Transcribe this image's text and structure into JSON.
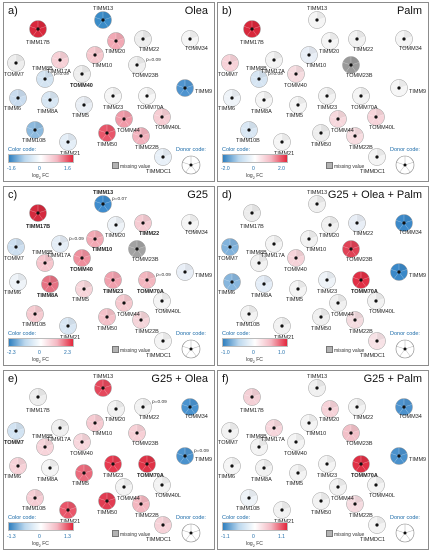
{
  "legend": {
    "color_code": "Color code:",
    "axis": "log",
    "axis_sub": "2",
    "axis_tail": " FC",
    "missing": "missing value",
    "donor_code": "Donor code:"
  },
  "proteins": [
    "TIMM17B",
    "TIMM13",
    "TIMM20",
    "TIMM22",
    "TOMM34",
    "TOMM7",
    "TIMM17A",
    "TIMM10",
    "TIMM8B",
    "TOMM40",
    "TOMM23B",
    "TIMM6",
    "TIMM8A",
    "TIMM23",
    "TOMM70A",
    "TIMM9",
    "TIMM5",
    "TOMM44",
    "TIMM10B",
    "TOMM40L",
    "TIMM21",
    "TIMM50",
    "TIMM22B",
    "TIMMDC1"
  ],
  "panels": [
    {
      "id": "a",
      "label": "a)",
      "title": "Olea",
      "min": "-1.6",
      "max": "1.6",
      "bold": [
        "TOMM17B",
        "TOMM40"
      ],
      "annotations": [
        {
          "t": "p=0.09",
          "near": "TOMM23B"
        },
        {
          "t": "p=0.09",
          "near": "TIMM8B"
        }
      ],
      "colors": {
        "TIMM17B": "#d8283c",
        "TIMM13": "#3a8cc8",
        "TIMM20": "#f1a8b4",
        "TIMM22": "#eeeeee",
        "TOMM34": "#f5f5f5",
        "TOMM7": "#eeeeee",
        "TIMM17A": "#f7d0d6",
        "TIMM10": "#f6c8ce",
        "TIMM8B": "#d4e4f2",
        "TOMM40": "#eeeeee",
        "TOMM23B": "#f0f0f0",
        "TIMM6": "#c9dcef",
        "TIMM8A": "#d7e6f3",
        "TIMM23": "#f5f5f5",
        "TOMM70A": "#f7f7f7",
        "TIMM9": "#4f94cf",
        "TIMM5": "#e9eef4",
        "TOMM44": "#f09aa8",
        "TIMM10B": "#8dbade",
        "TOMM40L": "#f6cdd3",
        "TIMM21": "#e4eef7",
        "TIMM50": "#e8566a",
        "TIMM22B": "#f2b2bd",
        "TIMMDC1": "#e8f0f8"
      }
    },
    {
      "id": "b",
      "label": "b)",
      "title": "Palm",
      "min": "-2.0",
      "max": "2.0",
      "bold": [],
      "annotations": [
        {
          "t": "p=0.09",
          "near": "TIMM8B"
        }
      ],
      "colors": {
        "TIMM17B": "#d8283c",
        "TIMM13": "#f5f5f5",
        "TIMM20": "#f5f5f5",
        "TIMM22": "#f2f2f2",
        "TOMM34": "#f5f5f5",
        "TOMM7": "#f7d2d8",
        "TIMM17A": "#f3f3f3",
        "TIMM10": "#e8eef6",
        "TIMM8B": "#d6e5f3",
        "TOMM40": "#f6dce0",
        "TOMM23B": "#9a9a9a",
        "TIMM6": "#eef3f8",
        "TIMM8A": "#f5f5f5",
        "TIMM23": "#f3f3f3",
        "TOMM70A": "#f4f4f4",
        "TIMM9": "#f6f6f6",
        "TIMM5": "#f5f5f5",
        "TOMM44": "#f7d8dd",
        "TIMM10B": "#d9e7f4",
        "TOMM40L": "#f7d4da",
        "TIMM21": "#f5f5f5",
        "TIMM50": "#eeeeee",
        "TIMM22B": "#f8dde1",
        "TIMMDC1": "#f4f4f4"
      }
    },
    {
      "id": "c",
      "label": "c)",
      "title": "G25",
      "min": "-2.3",
      "max": "2.3",
      "bold": [
        "TIMM17B",
        "TIMM13",
        "TIMM10",
        "TOMM40",
        "TIMM8A",
        "TIMM23",
        "TOMM70A",
        "TIMM22"
      ],
      "annotations": [
        {
          "t": "p=0.07",
          "near": "TIMM13"
        },
        {
          "t": "p=0.09",
          "near": "TIMM17A"
        },
        {
          "t": "p=0.09",
          "near": "TOMM70A"
        }
      ],
      "colors": {
        "TIMM17B": "#d42a3e",
        "TIMM13": "#3f8ccd",
        "TIMM20": "#eef3f8",
        "TIMM22": "#f5cbd2",
        "TOMM34": "#f5f5f5",
        "TOMM7": "#cddff0",
        "TIMM17A": "#e4edf6",
        "TIMM10": "#f2a9b4",
        "TIMM8B": "#f6c6cd",
        "TOMM40": "#ef8f9d",
        "TOMM23B": "#a2a2a2",
        "TIMM6": "#eef3f8",
        "TIMM8A": "#e57283",
        "TIMM23": "#f0a0ad",
        "TOMM70A": "#f3b6bf",
        "TIMM9": "#e9eff7",
        "TIMM5": "#f7d5da",
        "TOMM44": "#f5c9cf",
        "TIMM10B": "#f6cbd1",
        "TOMM40L": "#f4f4f4",
        "TIMM21": "#d8e6f3",
        "TIMM50": "#f4c0c8",
        "TIMM22B": "#f5d4d9",
        "TIMMDC1": "#f4f4f4"
      }
    },
    {
      "id": "d",
      "label": "d)",
      "title": "G25 + Olea + Palm",
      "min": "-1.0",
      "max": "1.0",
      "bold": [
        "TOMM70A"
      ],
      "annotations": [],
      "colors": {
        "TIMM17B": "#ececec",
        "TIMM13": "#f0f0f0",
        "TIMM20": "#f0f0f0",
        "TIMM22": "#e8eef6",
        "TOMM34": "#3c89c9",
        "TOMM7": "#82b3dc",
        "TIMM17A": "#f4f4f4",
        "TIMM10": "#f2f2f2",
        "TIMM8B": "#f2f2f2",
        "TOMM40": "#f6d3d9",
        "TOMM23B": "#e04256",
        "TIMM6": "#87b6dd",
        "TIMM8A": "#e4edf7",
        "TIMM23": "#eef3f8",
        "TOMM70A": "#e02f45",
        "TIMM9": "#3a88c8",
        "TIMM5": "#f4f4f4",
        "TOMM44": "#f0f0f0",
        "TIMM10B": "#f2f2f2",
        "TOMM40L": "#f2f2f2",
        "TIMM21": "#f2f2f2",
        "TIMM50": "#f0f0f0",
        "TIMM22B": "#f4dce0",
        "TIMMDC1": "#f7e2e6"
      }
    },
    {
      "id": "e",
      "label": "e)",
      "title": "G25 + Olea",
      "min": "-1.3",
      "max": "1.3",
      "bold": [
        "TOMM7",
        "TOMM70A"
      ],
      "annotations": [
        {
          "t": "p=0.09",
          "near": "TIMM22"
        },
        {
          "t": "p=0.09",
          "near": "TIMM9"
        }
      ],
      "colors": {
        "TIMM17B": "#eeeeee",
        "TIMM13": "#e4485c",
        "TIMM20": "#f2f2f2",
        "TIMM22": "#f2f2f2",
        "TOMM34": "#4a93cf",
        "TOMM7": "#d2e3f2",
        "TIMM17A": "#f0f0f0",
        "TIMM10": "#f6cbd2",
        "TIMM8B": "#f7d4da",
        "TOMM40": "#f7d6dc",
        "TOMM23B": "#f7d0d6",
        "TIMM6": "#f7d2d8",
        "TIMM8A": "#f5f5f5",
        "TIMM23": "#e63a50",
        "TOMM70A": "#df3347",
        "TIMM9": "#4b92cd",
        "TIMM5": "#ea6a7c",
        "TOMM44": "#f3f3f3",
        "TIMM10B": "#f6cdd4",
        "TOMM40L": "#f3f3f3",
        "TIMM21": "#e9566a",
        "TIMM50": "#e13c52",
        "TIMM22B": "#f3b6bf",
        "TIMMDC1": "#f6d2d8"
      }
    },
    {
      "id": "f",
      "label": "f)",
      "title": "G25 + Palm",
      "min": "-1.1",
      "max": "1.1",
      "bold": [
        "TOMM70A"
      ],
      "annotations": [],
      "colors": {
        "TIMM17B": "#f4d0d6",
        "TIMM13": "#f0f0f0",
        "TIMM20": "#f6d2d8",
        "TIMM22": "#f3f3f3",
        "TOMM34": "#4c92cd",
        "TOMM7": "#f2f2f2",
        "TIMM17A": "#f7d6dc",
        "TIMM10": "#f4f4f4",
        "TIMM8B": "#f3f3f3",
        "TOMM40": "#f4f4f4",
        "TOMM23B": "#f2c0c8",
        "TIMM6": "#f5f5f5",
        "TIMM8A": "#f2f2f2",
        "TIMM23": "#f4f4f4",
        "TOMM70A": "#df3045",
        "TIMM9": "#4a91cc",
        "TIMM5": "#f3f3f3",
        "TOMM44": "#f2f2f2",
        "TIMM10B": "#eef3f8",
        "TOMM40L": "#f4f4f4",
        "TIMM21": "#f2f2f2",
        "TIMM50": "#f2f2f2",
        "TIMM22B": "#f5dbe0",
        "TIMMDC1": "#f4f4f4"
      }
    }
  ]
}
